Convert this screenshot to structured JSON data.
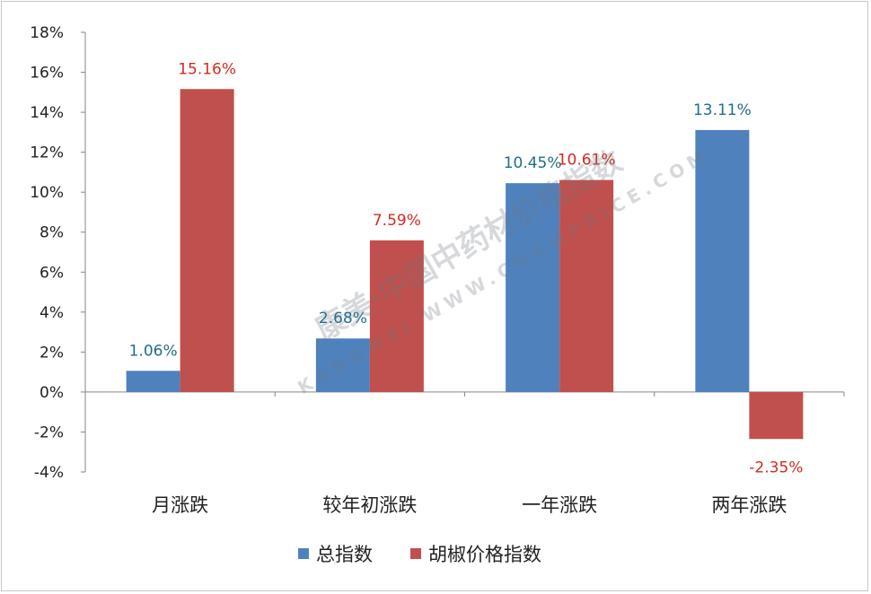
{
  "chart_data": {
    "type": "bar",
    "categories": [
      "月涨跌",
      "较年初涨跌",
      "一年涨跌",
      "两年涨跌"
    ],
    "series": [
      {
        "name": "总指数",
        "values": [
          1.06,
          2.68,
          10.45,
          13.11
        ],
        "labels": [
          "1.06%",
          "2.68%",
          "10.45%",
          "13.11%"
        ],
        "color": "#4F81BD",
        "label_color": "#1F6E8C"
      },
      {
        "name": "胡椒价格指数",
        "values": [
          15.16,
          7.59,
          10.61,
          -2.35
        ],
        "labels": [
          "15.16%",
          "7.59%",
          "10.61%",
          "-2.35%"
        ],
        "color": "#C0504D",
        "label_color": "#D42A1E"
      }
    ],
    "ylim": [
      -4,
      18
    ],
    "yticks": [
      -4,
      -2,
      0,
      2,
      4,
      6,
      8,
      10,
      12,
      14,
      16,
      18
    ],
    "ytick_labels": [
      "-4%",
      "-2%",
      "0%",
      "2%",
      "4%",
      "6%",
      "8%",
      "10%",
      "12%",
      "14%",
      "16%",
      "18%"
    ],
    "legend_position": "bottom",
    "grid": false
  },
  "watermark": {
    "text": "康美·中国中药材价格指数",
    "subtext": "KANGMEI WWW.CNKMPRICE.COM"
  }
}
